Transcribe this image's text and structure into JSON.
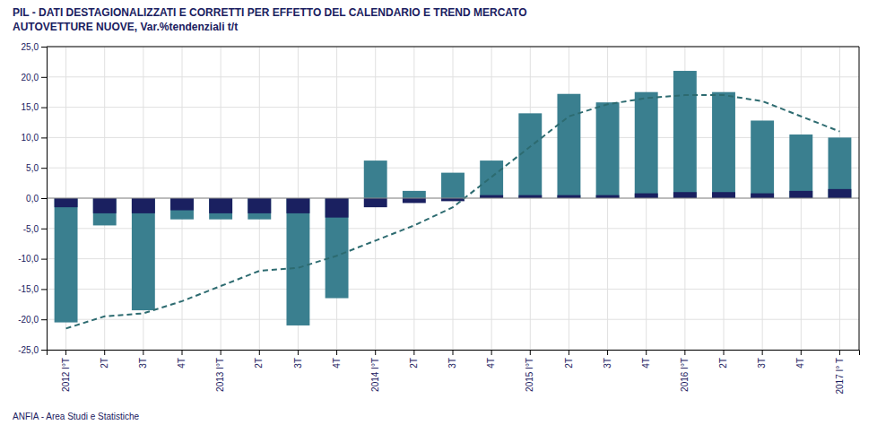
{
  "chart_data": {
    "type": "bar",
    "title": "PIL -  DATI DESTAGIONALIZZATI E CORRETTI PER EFFETTO DEL CALENDARIO E TREND MERCATO",
    "subtitle": "AUTOVETTURE NUOVE, Var.%tendenziali t/t",
    "annotations": [
      "ANFIA - Area Studi e Statistiche"
    ],
    "categories": [
      "2012 I°T",
      "2T",
      "3T",
      "4T",
      "2013 I°T",
      "2T",
      "3T",
      "4T",
      "2014 I°T",
      "2T",
      "3T",
      "4T",
      "2015 I°T",
      "2T",
      "3T",
      "4T",
      "2016 I°T",
      "2T",
      "3T",
      "4T",
      "2017 I° T"
    ],
    "series": [
      {
        "type": "bar",
        "color": "#3a7f8f",
        "values": [
          -20.5,
          -4.5,
          -18.5,
          -3.5,
          -3.5,
          -3.5,
          -21.0,
          -16.5,
          6.2,
          1.2,
          4.2,
          6.2,
          14.0,
          17.2,
          15.8,
          17.5,
          21.0,
          17.5,
          12.8,
          10.5,
          10.0
        ]
      },
      {
        "type": "bar",
        "color": "#1a2060",
        "values": [
          -1.5,
          -2.5,
          -2.5,
          -2.0,
          -2.5,
          -2.5,
          -2.5,
          -3.2,
          -1.5,
          -0.8,
          -0.5,
          0.5,
          0.5,
          0.5,
          0.5,
          0.8,
          1.0,
          1.0,
          0.8,
          1.2,
          1.5
        ]
      },
      {
        "type": "line",
        "color": "#2d6b70",
        "line_style": "dashed",
        "values": [
          -21.5,
          -19.5,
          -19.0,
          -17.0,
          -14.5,
          -12.0,
          -11.5,
          -9.5,
          -7.0,
          -4.5,
          -1.5,
          3.5,
          8.5,
          13.5,
          15.5,
          16.5,
          17.0,
          17.0,
          16.0,
          13.5,
          11.0
        ]
      }
    ],
    "ylim": [
      -25,
      25
    ],
    "yticks": [
      {
        "value": -25,
        "label": "-25,0"
      },
      {
        "value": -20,
        "label": "-20,0"
      },
      {
        "value": -15,
        "label": "-15,0"
      },
      {
        "value": -10,
        "label": "-10,0"
      },
      {
        "value": -5,
        "label": "-5,0"
      },
      {
        "value": 0,
        "label": "0,0"
      },
      {
        "value": 5,
        "label": "5,0"
      },
      {
        "value": 10,
        "label": "10,0"
      },
      {
        "value": 15,
        "label": "15,0"
      },
      {
        "value": 20,
        "label": "20,0"
      },
      {
        "value": 25,
        "label": "25,0"
      }
    ],
    "grid": true
  }
}
